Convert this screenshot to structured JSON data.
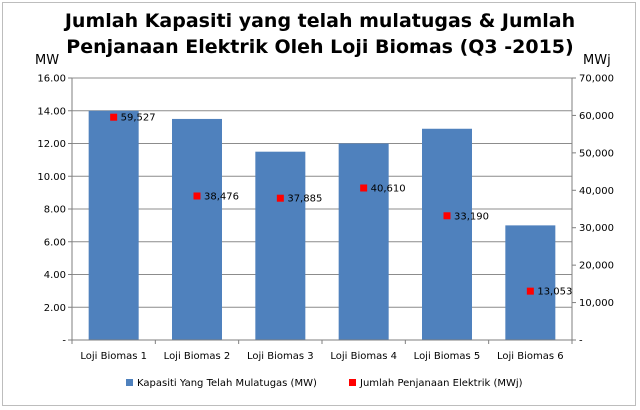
{
  "chart_data": {
    "type": "bar",
    "title_lines": [
      "Jumlah Kapasiti yang telah mulatugas & Jumlah",
      "Penjanaan Elektrik Oleh Loji Biomas (Q3 -2015)"
    ],
    "left_axis_unit": "MW",
    "right_axis_unit": "MWj",
    "categories": [
      "Loji Biomas  1",
      "Loji Biomas  2",
      "Loji Biomas  3",
      "Loji Biomas  4",
      "Loji Biomas  5",
      "Loji Biomas  6"
    ],
    "left_ylim": [
      0,
      16
    ],
    "right_ylim": [
      0,
      70000
    ],
    "left_ticks": [
      "-",
      "2.00",
      "4.00",
      "6.00",
      "8.00",
      "10.00",
      "12.00",
      "14.00",
      "16.00"
    ],
    "left_tick_values": [
      0,
      2,
      4,
      6,
      8,
      10,
      12,
      14,
      16
    ],
    "right_ticks": [
      "-",
      "10,000",
      "20,000",
      "30,000",
      "40,000",
      "50,000",
      "60,000",
      "70,000"
    ],
    "right_tick_values": [
      0,
      10000,
      20000,
      30000,
      40000,
      50000,
      60000,
      70000
    ],
    "grid": "horizontal",
    "legend_position": "bottom",
    "series": [
      {
        "name": "Kapasiti Yang Telah Mulatugas  (MW)",
        "type": "bar",
        "axis": "left",
        "color": "#4f81bd",
        "values": [
          14.0,
          13.5,
          11.5,
          12.0,
          12.9,
          7.0
        ]
      },
      {
        "name": "Jumlah Penjanaan Elektrik  (MWj)",
        "type": "scatter",
        "axis": "right",
        "color": "#ff0000",
        "values": [
          59527,
          38476,
          37885,
          40610,
          33190,
          13053
        ],
        "labels": [
          "59,527",
          "38,476",
          "37,885",
          "40,610",
          "33,190",
          "13,053"
        ]
      }
    ]
  }
}
